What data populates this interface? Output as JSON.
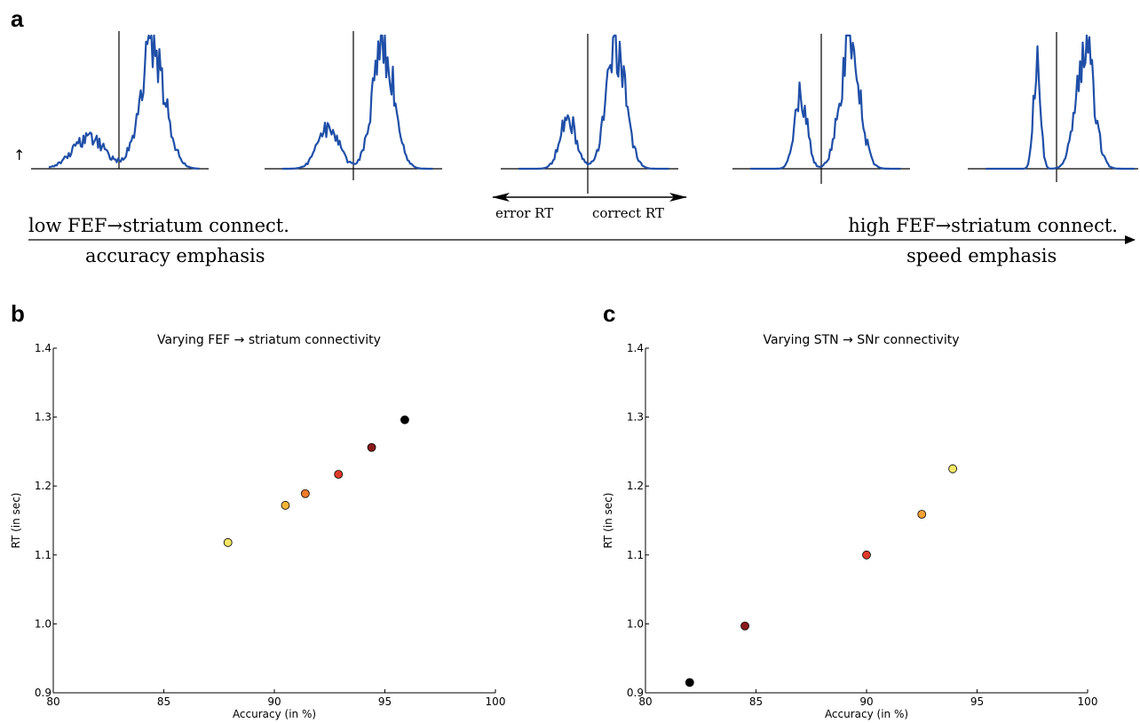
{
  "panel_labels": {
    "a": "a",
    "b": "b",
    "c": "c"
  },
  "panel_a": {
    "up_arrow": "↑",
    "error_label": "error RT",
    "correct_label": "correct RT",
    "left_label_line1": "low FEF→striatum connect.",
    "left_label_line2": "accuracy emphasis",
    "right_label_line1": "high FEF→striatum connect.",
    "right_label_line2": "speed emphasis",
    "trace_color": "#1f4fa8",
    "distribution_error_peak_fraction": [
      0.25,
      0.32,
      0.42,
      0.58,
      0.85
    ],
    "distribution_correct_peak_fraction": [
      1.0,
      1.0,
      1.0,
      1.0,
      1.0
    ]
  },
  "chart_data": [
    {
      "type": "scatter",
      "title": "Varying FEF → striatum connectivity",
      "xlabel": "Accuracy (in %)",
      "ylabel": "RT (in sec)",
      "xlim": [
        80,
        100
      ],
      "ylim": [
        0.9,
        1.4
      ],
      "xticks": [
        "80",
        "85",
        "90",
        "95",
        "100"
      ],
      "yticks": [
        "0.9",
        "1.0",
        "1.1",
        "1.2",
        "1.3",
        "1.4"
      ],
      "grid": false,
      "points": [
        {
          "x": 87.9,
          "y": 1.118,
          "color": "#f5e663"
        },
        {
          "x": 90.5,
          "y": 1.172,
          "color": "#f5b335"
        },
        {
          "x": 91.4,
          "y": 1.189,
          "color": "#f07a2a"
        },
        {
          "x": 92.9,
          "y": 1.217,
          "color": "#e03a2a"
        },
        {
          "x": 94.4,
          "y": 1.256,
          "color": "#8b1a1a"
        },
        {
          "x": 95.9,
          "y": 1.296,
          "color": "#000000"
        }
      ]
    },
    {
      "type": "scatter",
      "title": "Varying STN → SNr connectivity",
      "xlabel": "Accuracy (in %)",
      "ylabel": "RT (in sec)",
      "xlim": [
        80,
        100
      ],
      "ylim": [
        0.9,
        1.4
      ],
      "xticks": [
        "80",
        "85",
        "90",
        "95",
        "100"
      ],
      "yticks": [
        "0.9",
        "1.0",
        "1.1",
        "1.2",
        "1.3",
        "1.4"
      ],
      "grid": false,
      "points": [
        {
          "x": 82.0,
          "y": 0.915,
          "color": "#000000"
        },
        {
          "x": 84.5,
          "y": 0.997,
          "color": "#8b1a1a"
        },
        {
          "x": 90.0,
          "y": 1.1,
          "color": "#e03a2a"
        },
        {
          "x": 92.5,
          "y": 1.159,
          "color": "#f5a035"
        },
        {
          "x": 93.9,
          "y": 1.225,
          "color": "#f5e663"
        }
      ]
    }
  ]
}
